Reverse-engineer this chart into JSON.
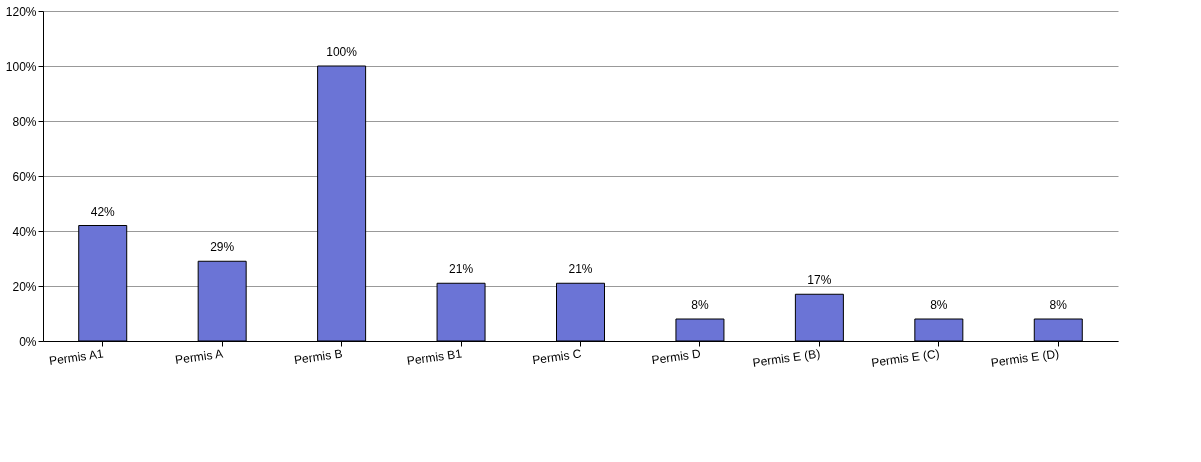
{
  "chart_data": {
    "type": "bar",
    "categories": [
      "Permis A1",
      "Permis A",
      "Permis B",
      "Permis B1",
      "Permis C",
      "Permis D",
      "Permis E (B)",
      "Permis E (C)",
      "Permis E (D)"
    ],
    "values": [
      42,
      29,
      100,
      21,
      21,
      8,
      17,
      8,
      8
    ],
    "value_labels": [
      "42%",
      "29%",
      "100%",
      "21%",
      "21%",
      "8%",
      "17%",
      "8%",
      "8%"
    ],
    "color": "#6b74d6",
    "ylim": [
      0,
      120
    ],
    "yticks": [
      {
        "value": 0,
        "label": "0%"
      },
      {
        "value": 20,
        "label": "20%"
      },
      {
        "value": 40,
        "label": "40%"
      },
      {
        "value": 60,
        "label": "60%"
      },
      {
        "value": 80,
        "label": "80%"
      },
      {
        "value": 100,
        "label": "100%"
      },
      {
        "value": 120,
        "label": "120%"
      }
    ],
    "grid": "y"
  }
}
